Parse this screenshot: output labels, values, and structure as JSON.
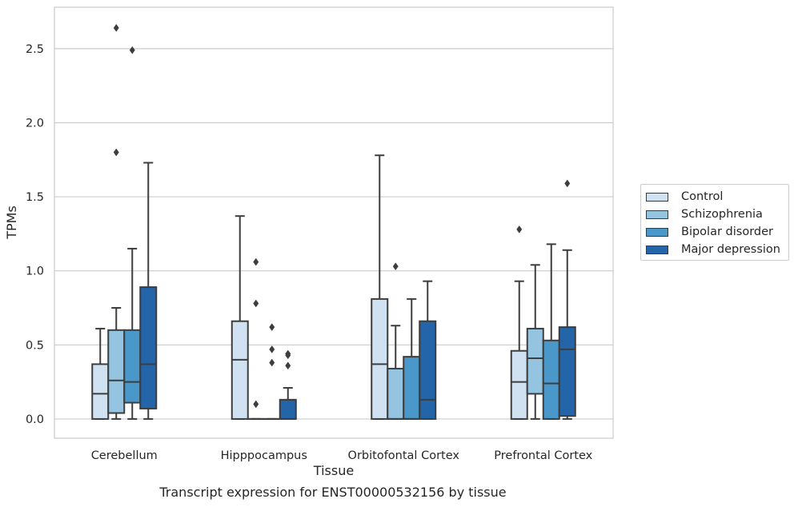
{
  "chart_data": {
    "type": "box",
    "title": "",
    "caption": "Transcript expression for ENST00000532156 by tissue",
    "xlabel": "Tissue",
    "ylabel": "TPMs",
    "ylim": [
      -0.13,
      2.78
    ],
    "yticks": [
      "0.0",
      "0.5",
      "1.0",
      "1.5",
      "2.0",
      "2.5"
    ],
    "grid": true,
    "legend_position": "right",
    "categories": [
      "Cerebellum",
      "Hipppocampus",
      "Orbitofontal Cortex",
      "Prefrontal Cortex"
    ],
    "series": [
      {
        "name": "Control",
        "color": "#d0e1f2",
        "boxes": [
          {
            "whislo": 0.0,
            "q1": 0.0,
            "med": 0.17,
            "q3": 0.37,
            "whishi": 0.61,
            "fliers": []
          },
          {
            "whislo": 0.0,
            "q1": 0.0,
            "med": 0.4,
            "q3": 0.66,
            "whishi": 1.37,
            "fliers": []
          },
          {
            "whislo": 0.0,
            "q1": 0.0,
            "med": 0.37,
            "q3": 0.81,
            "whishi": 1.78,
            "fliers": []
          },
          {
            "whislo": 0.0,
            "q1": 0.0,
            "med": 0.25,
            "q3": 0.46,
            "whishi": 0.93,
            "fliers": [
              1.28
            ]
          }
        ]
      },
      {
        "name": "Schizophrenia",
        "color": "#94c4df",
        "boxes": [
          {
            "whislo": 0.0,
            "q1": 0.04,
            "med": 0.26,
            "q3": 0.6,
            "whishi": 0.75,
            "fliers": [
              1.8,
              2.64
            ]
          },
          {
            "whislo": 0.0,
            "q1": 0.0,
            "med": 0.0,
            "q3": 0.0,
            "whishi": 0.0,
            "fliers": [
              0.1,
              0.78,
              1.06
            ]
          },
          {
            "whislo": 0.0,
            "q1": 0.0,
            "med": 0.0,
            "q3": 0.34,
            "whishi": 0.63,
            "fliers": [
              1.03
            ]
          },
          {
            "whislo": 0.0,
            "q1": 0.17,
            "med": 0.41,
            "q3": 0.61,
            "whishi": 1.04,
            "fliers": []
          }
        ]
      },
      {
        "name": "Bipolar disorder",
        "color": "#4a98c9",
        "boxes": [
          {
            "whislo": 0.0,
            "q1": 0.11,
            "med": 0.25,
            "q3": 0.6,
            "whishi": 1.15,
            "fliers": [
              2.49
            ]
          },
          {
            "whislo": 0.0,
            "q1": 0.0,
            "med": 0.0,
            "q3": 0.0,
            "whishi": 0.0,
            "fliers": [
              0.38,
              0.47,
              0.62
            ]
          },
          {
            "whislo": 0.0,
            "q1": 0.0,
            "med": 0.0,
            "q3": 0.42,
            "whishi": 0.81,
            "fliers": []
          },
          {
            "whislo": 0.0,
            "q1": 0.0,
            "med": 0.24,
            "q3": 0.53,
            "whishi": 1.18,
            "fliers": []
          }
        ]
      },
      {
        "name": "Major depression",
        "color": "#2464a8",
        "boxes": [
          {
            "whislo": 0.0,
            "q1": 0.07,
            "med": 0.37,
            "q3": 0.89,
            "whishi": 1.73,
            "fliers": []
          },
          {
            "whislo": 0.0,
            "q1": 0.0,
            "med": 0.0,
            "q3": 0.13,
            "whishi": 0.21,
            "fliers": [
              0.36,
              0.43,
              0.44
            ]
          },
          {
            "whislo": 0.0,
            "q1": 0.0,
            "med": 0.13,
            "q3": 0.66,
            "whishi": 0.93,
            "fliers": []
          },
          {
            "whislo": 0.0,
            "q1": 0.02,
            "med": 0.47,
            "q3": 0.62,
            "whishi": 1.14,
            "fliers": [
              1.59
            ]
          }
        ]
      }
    ]
  }
}
